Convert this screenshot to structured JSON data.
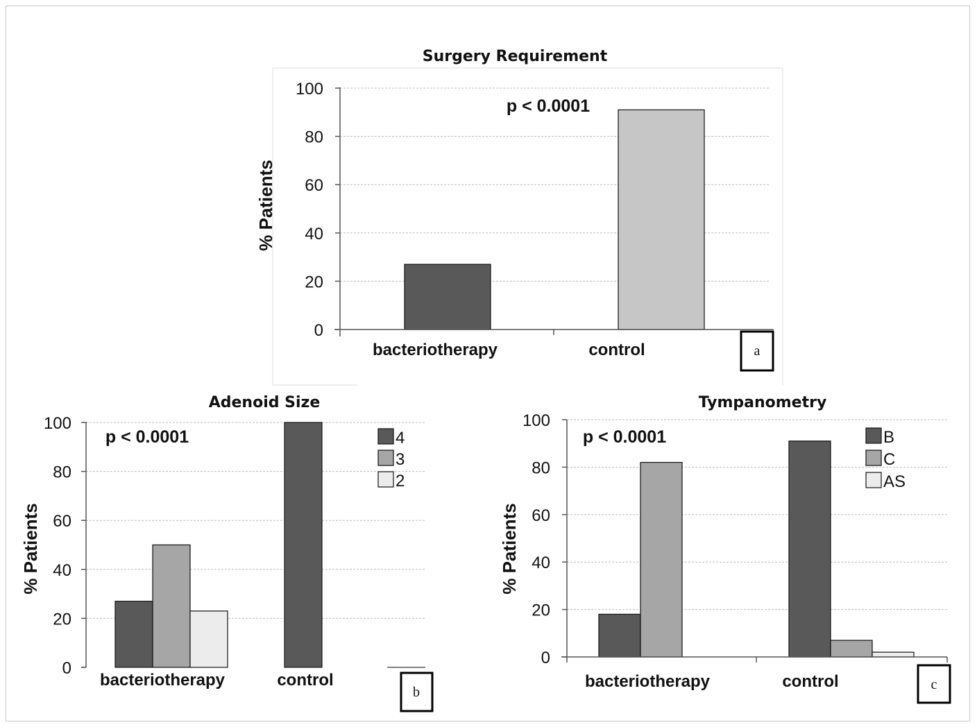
{
  "chart_data": [
    {
      "type": "bar",
      "title": "Surgery Requirement",
      "ylabel": "% Patients",
      "xlabel": "",
      "ylim": [
        0,
        100
      ],
      "yticks": [
        "0",
        "20",
        "40",
        "60",
        "80",
        "100"
      ],
      "categories": [
        "bacteriotherapy",
        "control"
      ],
      "values": [
        27,
        91
      ],
      "bar_colors": [
        "#595959",
        "#c6c6c6"
      ],
      "annotation": "p < 0.0001",
      "panel_label": "a",
      "grid": true
    },
    {
      "type": "bar",
      "title": "Adenoid Size",
      "ylabel": "% Patients",
      "xlabel": "",
      "ylim": [
        0,
        100
      ],
      "yticks": [
        "0",
        "20",
        "40",
        "60",
        "80",
        "100"
      ],
      "categories": [
        "bacteriotherapy",
        "control"
      ],
      "series": [
        {
          "name": "4",
          "values": [
            27,
            100
          ],
          "color": "#595959"
        },
        {
          "name": "3",
          "values": [
            50,
            0
          ],
          "color": "#a6a6a6"
        },
        {
          "name": "2",
          "values": [
            23,
            0
          ],
          "color": "#ececec"
        }
      ],
      "annotation": "p < 0.0001",
      "panel_label": "b",
      "legend": "top-right",
      "grid": true
    },
    {
      "type": "bar",
      "title": "Tympanometry",
      "ylabel": "% Patients",
      "xlabel": "",
      "ylim": [
        0,
        100
      ],
      "yticks": [
        "0",
        "20",
        "40",
        "60",
        "80",
        "100"
      ],
      "categories": [
        "bacteriotherapy",
        "control"
      ],
      "series": [
        {
          "name": "B",
          "values": [
            18,
            91
          ],
          "color": "#595959"
        },
        {
          "name": "C",
          "values": [
            82,
            7
          ],
          "color": "#a6a6a6"
        },
        {
          "name": "AS",
          "values": [
            0,
            2
          ],
          "color": "#ececec"
        }
      ],
      "annotation": "p < 0.0001",
      "panel_label": "c",
      "legend": "top-right",
      "grid": true
    }
  ]
}
